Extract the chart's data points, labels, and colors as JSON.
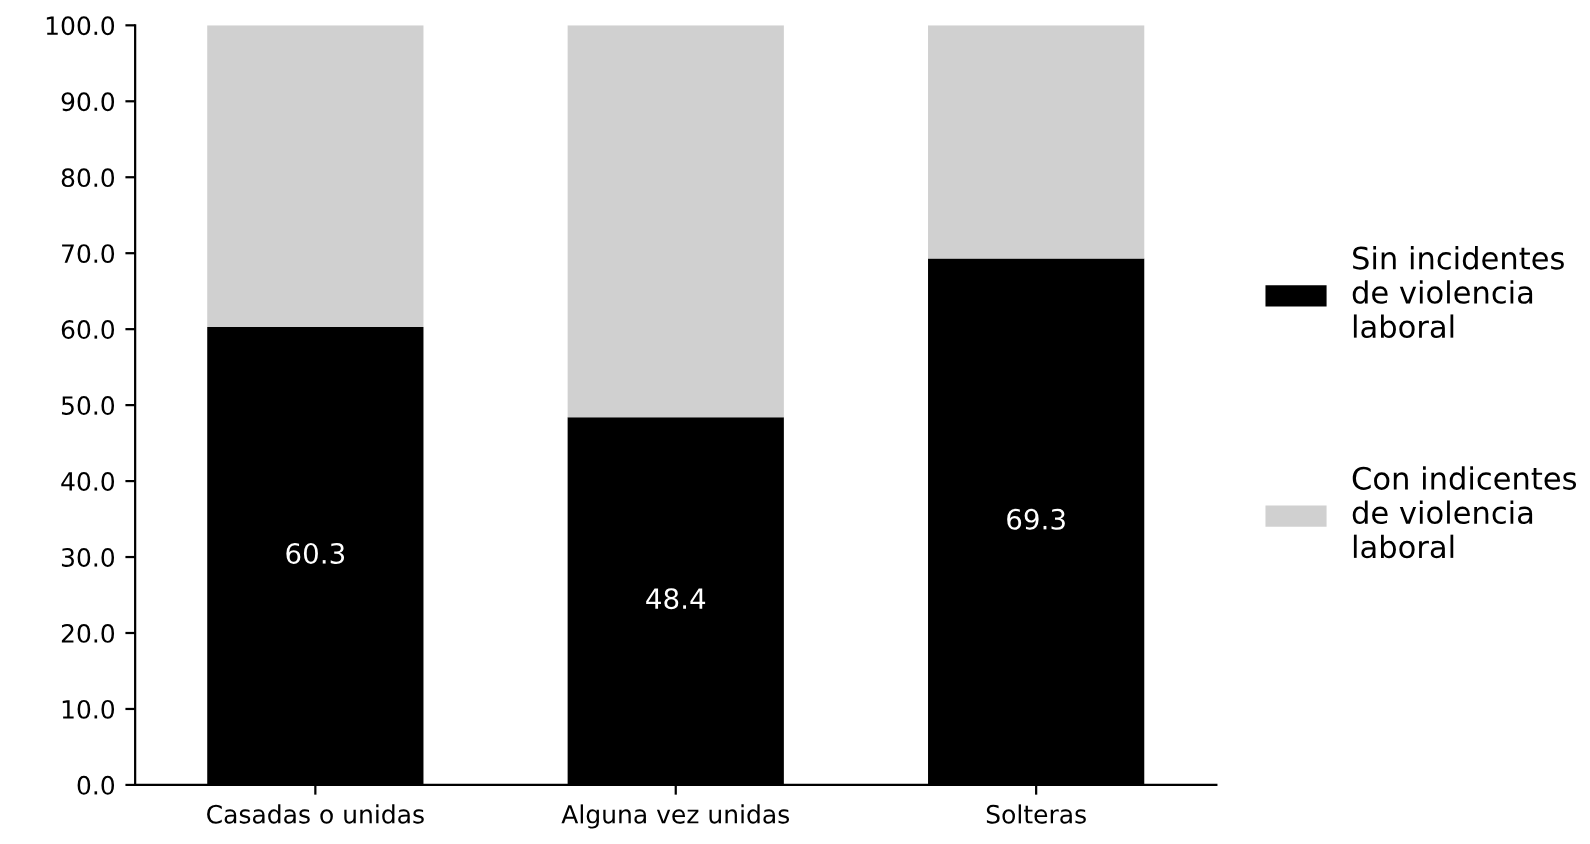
{
  "chart_data": {
    "type": "bar",
    "stacked": true,
    "categories": [
      "Casadas o unidas",
      "Alguna vez unidas",
      "Solteras"
    ],
    "series": [
      {
        "name": "Sin incidentes\nde violencia\nlaboral",
        "color": "#000000",
        "values": [
          60.3,
          48.4,
          69.3
        ],
        "value_labels": [
          "60.3",
          "48.4",
          "69.3"
        ]
      },
      {
        "name": "Con indicentes\nde violencia\nlaboral",
        "color": "#d0d0d0",
        "values": [
          39.7,
          51.6,
          30.7
        ]
      }
    ],
    "ylim": [
      0,
      100
    ],
    "yticks": [
      "0.0",
      "10.0",
      "20.0",
      "30.0",
      "40.0",
      "50.0",
      "60.0",
      "70.0",
      "80.0",
      "90.0",
      "100.0"
    ],
    "grid": false,
    "legend": "right"
  }
}
